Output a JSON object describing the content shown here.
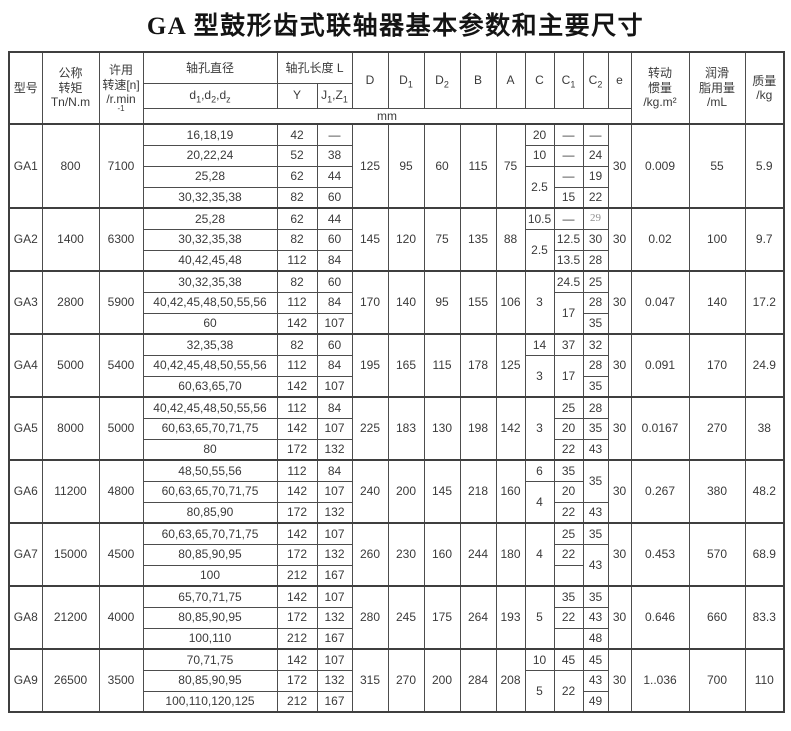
{
  "title": "GA 型鼓形齿式联轴器基本参数和主要尺寸",
  "table": {
    "header": {
      "model": "型号",
      "torque": "公称\n转矩\nTn/N.m",
      "speed": "许用\n转速[n]\n/r.min",
      "speed_sup": "-1",
      "bore_dia": "轴孔直径",
      "bore_len": "轴孔长度 L",
      "Y": "Y",
      "D": "D",
      "B": "B",
      "A": "A",
      "C": "C",
      "e": "e",
      "unit": "mm",
      "inertia": "转动\n惯量\n/kg.m²",
      "grease": "润滑\n脂用量\n/mL",
      "mass": "质量\n/kg",
      "sub": {
        "bore": [
          [
            "d",
            "1"
          ],
          [
            ",d",
            "2"
          ],
          [
            ",d",
            "z"
          ]
        ],
        "JZ": [
          [
            "J",
            "1"
          ],
          [
            ",Z",
            "1"
          ]
        ],
        "D1": [
          [
            "D",
            "1"
          ]
        ],
        "D2": [
          [
            "D",
            "2"
          ]
        ],
        "C1": [
          [
            "C",
            "1"
          ]
        ],
        "C2": [
          [
            "C",
            "2"
          ]
        ]
      }
    },
    "groups": [
      {
        "model": "GA1",
        "torque": "800",
        "speed": "7100",
        "rows": [
          {
            "d": "16,18,19",
            "y": "42",
            "jz": "—"
          },
          {
            "d": "20,22,24",
            "y": "52",
            "jz": "38"
          },
          {
            "d": "25,28",
            "y": "62",
            "jz": "44"
          },
          {
            "d": "30,32,35,38",
            "y": "82",
            "jz": "60"
          }
        ],
        "dims": {
          "D": "125",
          "D1": "95",
          "D2": "60",
          "B": "115",
          "A": "75"
        },
        "C": [
          {
            "t": "20",
            "s": 1
          },
          {
            "t": "10",
            "s": 1
          },
          {
            "t": "2.5",
            "s": 2
          }
        ],
        "C1": [
          {
            "t": "—",
            "s": 1
          },
          {
            "t": "—",
            "s": 1
          },
          {
            "t": "—",
            "s": 1
          },
          {
            "t": "15",
            "s": 1
          }
        ],
        "C2": [
          {
            "t": "—",
            "s": 1
          },
          {
            "t": "24",
            "s": 1
          },
          {
            "t": "19",
            "s": 1
          },
          {
            "t": "22",
            "s": 1
          }
        ],
        "e": "30",
        "inertia": "0.009",
        "grease": "55",
        "mass": "5.9"
      },
      {
        "model": "GA2",
        "torque": "1400",
        "speed": "6300",
        "rows": [
          {
            "d": "25,28",
            "y": "62",
            "jz": "44"
          },
          {
            "d": "30,32,35,38",
            "y": "82",
            "jz": "60"
          },
          {
            "d": "40,42,45,48",
            "y": "112",
            "jz": "84"
          }
        ],
        "dims": {
          "D": "145",
          "D1": "120",
          "D2": "75",
          "B": "135",
          "A": "88"
        },
        "C": [
          {
            "t": "10.5",
            "s": 1
          },
          {
            "t": "2.5",
            "s": 2
          }
        ],
        "C1": [
          {
            "t": "—",
            "s": 1
          },
          {
            "t": "12.5",
            "s": 1
          },
          {
            "t": "13.5",
            "s": 1
          }
        ],
        "C2": [
          {
            "t": "29",
            "s": 1,
            "m": true
          },
          {
            "t": "30",
            "s": 1
          },
          {
            "t": "28",
            "s": 1
          }
        ],
        "e": "30",
        "inertia": "0.02",
        "grease": "100",
        "mass": "9.7"
      },
      {
        "model": "GA3",
        "torque": "2800",
        "speed": "5900",
        "rows": [
          {
            "d": "30,32,35,38",
            "y": "82",
            "jz": "60"
          },
          {
            "d": "40,42,45,48,50,55,56",
            "y": "112",
            "jz": "84"
          },
          {
            "d": "60",
            "y": "142",
            "jz": "107"
          }
        ],
        "dims": {
          "D": "170",
          "D1": "140",
          "D2": "95",
          "B": "155",
          "A": "106"
        },
        "C": [
          {
            "t": "3",
            "s": 3
          }
        ],
        "C1": [
          {
            "t": "24.5",
            "s": 1
          },
          {
            "t": "17",
            "s": 2
          }
        ],
        "C2": [
          {
            "t": "25",
            "s": 1
          },
          {
            "t": "28",
            "s": 1
          },
          {
            "t": "35",
            "s": 1
          }
        ],
        "e": "30",
        "inertia": "0.047",
        "grease": "140",
        "mass": "17.2"
      },
      {
        "model": "GA4",
        "torque": "5000",
        "speed": "5400",
        "rows": [
          {
            "d": "32,35,38",
            "y": "82",
            "jz": "60"
          },
          {
            "d": "40,42,45,48,50,55,56",
            "y": "112",
            "jz": "84"
          },
          {
            "d": "60,63,65,70",
            "y": "142",
            "jz": "107"
          }
        ],
        "dims": {
          "D": "195",
          "D1": "165",
          "D2": "115",
          "B": "178",
          "A": "125"
        },
        "C": [
          {
            "t": "14",
            "s": 1
          },
          {
            "t": "3",
            "s": 2
          }
        ],
        "C1": [
          {
            "t": "37",
            "s": 1
          },
          {
            "t": "17",
            "s": 2
          }
        ],
        "C2": [
          {
            "t": "32",
            "s": 1
          },
          {
            "t": "28",
            "s": 1
          },
          {
            "t": "35",
            "s": 1
          }
        ],
        "e": "30",
        "inertia": "0.091",
        "grease": "170",
        "mass": "24.9"
      },
      {
        "model": "GA5",
        "torque": "8000",
        "speed": "5000",
        "rows": [
          {
            "d": "40,42,45,48,50,55,56",
            "y": "112",
            "jz": "84"
          },
          {
            "d": "60,63,65,70,71,75",
            "y": "142",
            "jz": "107"
          },
          {
            "d": "80",
            "y": "172",
            "jz": "132"
          }
        ],
        "dims": {
          "D": "225",
          "D1": "183",
          "D2": "130",
          "B": "198",
          "A": "142"
        },
        "C": [
          {
            "t": "3",
            "s": 3
          }
        ],
        "C1": [
          {
            "t": "25",
            "s": 1
          },
          {
            "t": "20",
            "s": 1
          },
          {
            "t": "22",
            "s": 1
          }
        ],
        "C2": [
          {
            "t": "28",
            "s": 1
          },
          {
            "t": "35",
            "s": 1
          },
          {
            "t": "43",
            "s": 1
          }
        ],
        "e": "30",
        "inertia": "0.0167",
        "grease": "270",
        "mass": "38"
      },
      {
        "model": "GA6",
        "torque": "11200",
        "speed": "4800",
        "rows": [
          {
            "d": "48,50,55,56",
            "y": "112",
            "jz": "84"
          },
          {
            "d": "60,63,65,70,71,75",
            "y": "142",
            "jz": "107"
          },
          {
            "d": "80,85,90",
            "y": "172",
            "jz": "132"
          }
        ],
        "dims": {
          "D": "240",
          "D1": "200",
          "D2": "145",
          "B": "218",
          "A": "160"
        },
        "C": [
          {
            "t": "6",
            "s": 1
          },
          {
            "t": "4",
            "s": 2
          }
        ],
        "C1": [
          {
            "t": "35",
            "s": 1
          },
          {
            "t": "20",
            "s": 1
          },
          {
            "t": "22",
            "s": 1
          }
        ],
        "C2": [
          {
            "t": "35",
            "s": 2
          },
          {
            "t": "43",
            "s": 1
          }
        ],
        "e": "30",
        "inertia": "0.267",
        "grease": "380",
        "mass": "48.2"
      },
      {
        "model": "GA7",
        "torque": "15000",
        "speed": "4500",
        "rows": [
          {
            "d": "60,63,65,70,71,75",
            "y": "142",
            "jz": "107"
          },
          {
            "d": "80,85,90,95",
            "y": "172",
            "jz": "132"
          },
          {
            "d": "100",
            "y": "212",
            "jz": "167"
          }
        ],
        "dims": {
          "D": "260",
          "D1": "230",
          "D2": "160",
          "B": "244",
          "A": "180"
        },
        "C": [
          {
            "t": "4",
            "s": 3
          }
        ],
        "C1": [
          {
            "t": "25",
            "s": 1
          },
          {
            "t": "22",
            "s": 1
          },
          {
            "t": "",
            "s": 1
          }
        ],
        "C2": [
          {
            "t": "35",
            "s": 1
          },
          {
            "t": "43",
            "s": 2
          }
        ],
        "e": "30",
        "inertia": "0.453",
        "grease": "570",
        "mass": "68.9"
      },
      {
        "model": "GA8",
        "torque": "21200",
        "speed": "4000",
        "rows": [
          {
            "d": "65,70,71,75",
            "y": "142",
            "jz": "107"
          },
          {
            "d": "80,85,90,95",
            "y": "172",
            "jz": "132"
          },
          {
            "d": "100,110",
            "y": "212",
            "jz": "167"
          }
        ],
        "dims": {
          "D": "280",
          "D1": "245",
          "D2": "175",
          "B": "264",
          "A": "193"
        },
        "C": [
          {
            "t": "5",
            "s": 3
          }
        ],
        "C1": [
          {
            "t": "35",
            "s": 1
          },
          {
            "t": "22",
            "s": 1
          },
          {
            "t": "",
            "s": 1
          }
        ],
        "C2": [
          {
            "t": "35",
            "s": 1
          },
          {
            "t": "43",
            "s": 1
          },
          {
            "t": "48",
            "s": 1
          }
        ],
        "e": "30",
        "inertia": "0.646",
        "grease": "660",
        "mass": "83.3"
      },
      {
        "model": "GA9",
        "torque": "26500",
        "speed": "3500",
        "rows": [
          {
            "d": "70,71,75",
            "y": "142",
            "jz": "107"
          },
          {
            "d": "80,85,90,95",
            "y": "172",
            "jz": "132"
          },
          {
            "d": "100,110,120,125",
            "y": "212",
            "jz": "167"
          }
        ],
        "dims": {
          "D": "315",
          "D1": "270",
          "D2": "200",
          "B": "284",
          "A": "208"
        },
        "C": [
          {
            "t": "10",
            "s": 1
          },
          {
            "t": "5",
            "s": 2
          }
        ],
        "C1": [
          {
            "t": "45",
            "s": 1
          },
          {
            "t": "22",
            "s": 2
          }
        ],
        "C2": [
          {
            "t": "45",
            "s": 1
          },
          {
            "t": "43",
            "s": 1
          },
          {
            "t": "49",
            "s": 1
          }
        ],
        "e": "30",
        "inertia": "1..036",
        "grease": "700",
        "mass": "110"
      }
    ]
  }
}
